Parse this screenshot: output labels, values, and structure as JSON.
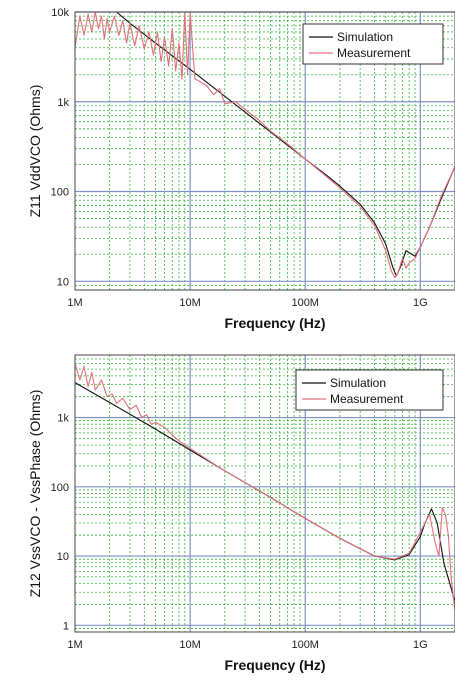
{
  "chart_data": [
    {
      "type": "line",
      "xscale": "log",
      "yscale": "log",
      "xlim": [
        1000000,
        2000000000
      ],
      "ylim": [
        8,
        10000
      ],
      "xticks": [
        1000000,
        10000000,
        100000000,
        1000000000
      ],
      "xtick_labels": [
        "1M",
        "10M",
        "100M",
        "1G"
      ],
      "yticks": [
        10,
        100,
        1000,
        10000
      ],
      "ytick_labels": [
        "10",
        "100",
        "1k",
        "10k"
      ],
      "xlabel": "Frequency (Hz)",
      "ylabel": "Z11 VddVCO (Ohms)",
      "grid": true,
      "legend": "top-right",
      "series": [
        {
          "name": "Simulation",
          "color": "#111111",
          "x": [
            2300000,
            3000000,
            5000000,
            10000000,
            20000000,
            50000000,
            100000000,
            150000000,
            200000000,
            300000000,
            400000000,
            500000000,
            580000000,
            620000000,
            680000000,
            750000000,
            900000000,
            1000000000,
            1200000000,
            1500000000,
            2000000000
          ],
          "y": [
            10000,
            7500,
            4500,
            2300,
            1150,
            460,
            230,
            155,
            115,
            72,
            45,
            26,
            14,
            11.5,
            15,
            22,
            19,
            24,
            40,
            80,
            190
          ]
        },
        {
          "name": "Measurement",
          "color": "#e0707c",
          "x": [
            1000000,
            1100000,
            1200000,
            1300000,
            1400000,
            1500000,
            1600000,
            1700000,
            1800000,
            1900000,
            2000000,
            2200000,
            2400000,
            2600000,
            2800000,
            3000000,
            3300000,
            3600000,
            4000000,
            4400000,
            4800000,
            5200000,
            5600000,
            6000000,
            6500000,
            7000000,
            7500000,
            8000000,
            8500000,
            9000000,
            9500000,
            10000000,
            11000000,
            12000000,
            14000000,
            16000000,
            18000000,
            20000000,
            25000000,
            30000000,
            40000000,
            50000000,
            70000000,
            100000000,
            150000000,
            200000000,
            300000000,
            400000000,
            500000000,
            560000000,
            600000000,
            640000000,
            700000000,
            750000000,
            800000000,
            900000000,
            1000000000,
            1200000000,
            1500000000,
            2000000000
          ],
          "y": [
            4000,
            9000,
            5500,
            9500,
            6000,
            10000,
            6500,
            9000,
            5000,
            8500,
            6000,
            9000,
            5500,
            8000,
            4500,
            7500,
            4200,
            7000,
            3900,
            6000,
            3300,
            6000,
            2800,
            5200,
            2500,
            6500,
            2200,
            4500,
            1800,
            10000,
            2000,
            10000,
            1800,
            1700,
            1500,
            1200,
            1400,
            950,
            1000,
            820,
            620,
            470,
            340,
            230,
            150,
            110,
            68,
            42,
            22,
            13,
            11,
            12.5,
            18,
            14,
            16,
            18,
            24,
            40,
            85,
            190
          ]
        }
      ]
    },
    {
      "type": "line",
      "xscale": "log",
      "yscale": "log",
      "xlim": [
        1000000,
        2000000000
      ],
      "ylim": [
        0.8,
        8000
      ],
      "xticks": [
        1000000,
        10000000,
        100000000,
        1000000000
      ],
      "xtick_labels": [
        "1M",
        "10M",
        "100M",
        "1G"
      ],
      "yticks": [
        1,
        10,
        100,
        1000
      ],
      "ytick_labels": [
        "1",
        "10",
        "100",
        "1k"
      ],
      "xlabel": "Frequency (Hz)",
      "ylabel": "Z12 VssVCO - VssPhase (Ohms)",
      "grid": true,
      "legend": "top-right",
      "series": [
        {
          "name": "Simulation",
          "color": "#111111",
          "x": [
            1000000,
            2000000,
            5000000,
            10000000,
            20000000,
            50000000,
            100000000,
            200000000,
            400000000,
            600000000,
            800000000,
            1000000000,
            1100000000,
            1250000000,
            1400000000,
            1600000000,
            2000000000
          ],
          "y": [
            3200,
            1650,
            680,
            340,
            170,
            70,
            35,
            18,
            10,
            8.8,
            10.5,
            19,
            30,
            48,
            30,
            8,
            2.2
          ]
        },
        {
          "name": "Measurement",
          "color": "#e0707c",
          "x": [
            1000000,
            1100000,
            1200000,
            1300000,
            1400000,
            1500000,
            1700000,
            1900000,
            2100000,
            2300000,
            2600000,
            3000000,
            3400000,
            3800000,
            4200000,
            4600000,
            5000000,
            6000000,
            7000000,
            8000000,
            10000000,
            15000000,
            20000000,
            50000000,
            100000000,
            200000000,
            400000000,
            600000000,
            800000000,
            1000000000,
            1200000000,
            1350000000,
            1450000000,
            1550000000,
            1650000000,
            1750000000,
            1850000000,
            2000000000
          ],
          "y": [
            6000,
            3500,
            5500,
            2800,
            4500,
            2500,
            3500,
            2000,
            2200,
            1600,
            1900,
            1300,
            1500,
            1000,
            1100,
            800,
            850,
            720,
            560,
            460,
            360,
            230,
            170,
            70,
            35,
            18,
            10,
            9,
            11,
            22,
            40,
            15,
            10,
            50,
            40,
            20,
            5,
            1.6
          ]
        }
      ]
    }
  ]
}
